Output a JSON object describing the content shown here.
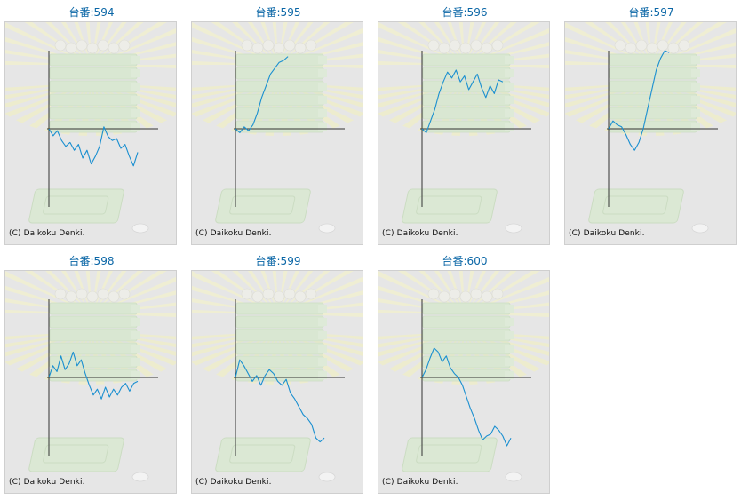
{
  "copyright": "(C) Daikoku Denki.",
  "line_color": "#1a8fd0",
  "title_color": "#0a66a6",
  "chart_data": [
    {
      "type": "line",
      "title": "台番:594",
      "y": [
        0,
        -0.18,
        -0.05,
        -0.3,
        -0.45,
        -0.35,
        -0.55,
        -0.4,
        -0.75,
        -0.55,
        -0.9,
        -0.7,
        -0.45,
        0.05,
        -0.2,
        -0.3,
        -0.25,
        -0.5,
        -0.4,
        -0.7,
        -0.95,
        -0.6
      ]
    },
    {
      "type": "line",
      "title": "台番:595",
      "y": [
        0,
        -0.1,
        0.05,
        -0.05,
        0.1,
        0.4,
        0.8,
        1.1,
        1.4,
        1.55,
        1.7,
        1.75,
        1.85
      ]
    },
    {
      "type": "line",
      "title": "台番:596",
      "y": [
        0,
        -0.1,
        0.2,
        0.5,
        0.9,
        1.2,
        1.45,
        1.3,
        1.5,
        1.2,
        1.35,
        1.0,
        1.2,
        1.4,
        1.05,
        0.8,
        1.1,
        0.9,
        1.25,
        1.2
      ]
    },
    {
      "type": "line",
      "title": "台番:597",
      "y": [
        0,
        0.2,
        0.1,
        0.05,
        -0.15,
        -0.4,
        -0.55,
        -0.35,
        0,
        0.5,
        1.0,
        1.5,
        1.8,
        2.0,
        1.95
      ]
    },
    {
      "type": "line",
      "title": "台番:598",
      "y": [
        0,
        0.3,
        0.15,
        0.55,
        0.2,
        0.35,
        0.65,
        0.3,
        0.45,
        0.1,
        -0.2,
        -0.45,
        -0.3,
        -0.55,
        -0.25,
        -0.5,
        -0.3,
        -0.45,
        -0.25,
        -0.15,
        -0.35,
        -0.15,
        -0.1
      ]
    },
    {
      "type": "line",
      "title": "台番:599",
      "y": [
        0,
        0.45,
        0.3,
        0.1,
        -0.1,
        0.05,
        -0.2,
        0.05,
        0.2,
        0.1,
        -0.1,
        -0.2,
        -0.05,
        -0.4,
        -0.55,
        -0.75,
        -0.95,
        -1.05,
        -1.2,
        -1.55,
        -1.65,
        -1.55
      ]
    },
    {
      "type": "line",
      "title": "台番:600",
      "y": [
        0,
        0.2,
        0.5,
        0.75,
        0.65,
        0.4,
        0.55,
        0.25,
        0.1,
        0,
        -0.2,
        -0.5,
        -0.8,
        -1.05,
        -1.35,
        -1.6,
        -1.5,
        -1.45,
        -1.25,
        -1.35,
        -1.5,
        -1.75,
        -1.55
      ]
    }
  ]
}
